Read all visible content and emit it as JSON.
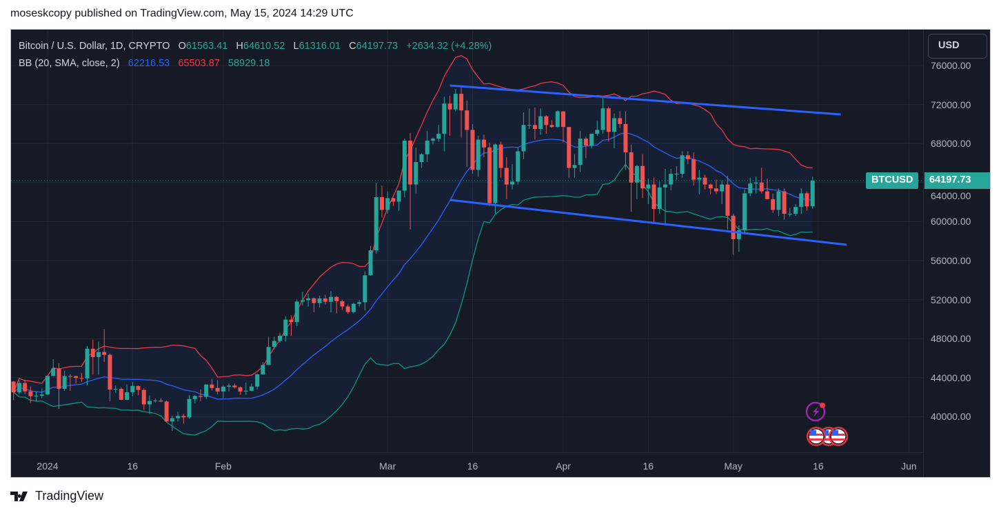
{
  "publisher_line": "moseskcopy published on TradingView.com, May 15, 2024 14:29 UTC",
  "footer": {
    "logo_text": "TradingView"
  },
  "legend": {
    "symbol": "Bitcoin / U.S. Dollar, 1D, CRYPTO",
    "o_label": "O",
    "o": "61563.41",
    "h_label": "H",
    "h": "64610.52",
    "l_label": "L",
    "l": "61316.01",
    "c_label": "C",
    "c": "64197.73",
    "change": "+2634.32 (+4.28%)",
    "bb_label": "BB (20, SMA, close, 2)",
    "bb_basis": "62216.53",
    "bb_upper": "65503.87",
    "bb_lower": "58929.18"
  },
  "currency_button": "USD",
  "symbol_tag": "BTCUSD",
  "last_price": "64197.73",
  "colors": {
    "up": "#26a69a",
    "down": "#ef5350",
    "bb_basis": "#2962ff",
    "bb_upper": "#f23645",
    "bb_lower": "#089981",
    "trendline": "#2962ff",
    "background": "#161a25"
  },
  "event_icons": [
    "lightning-event-icon",
    "us-flag-event-icon",
    "us-flag-event-icon"
  ],
  "chart_data": {
    "type": "candlestick",
    "interval": "1D",
    "ylim": [
      37000,
      79000
    ],
    "grid": true,
    "y_ticks": [
      "76000.00",
      "72000.00",
      "68000.00",
      "64000.00",
      "60000.00",
      "56000.00",
      "52000.00",
      "48000.00",
      "44000.00",
      "40000.00"
    ],
    "x_ticks": [
      {
        "date": "2024-01-01",
        "label": "2024"
      },
      {
        "date": "2024-01-16",
        "label": "16"
      },
      {
        "date": "2024-02-01",
        "label": "Feb"
      },
      {
        "date": "2024-03-01",
        "label": "Mar"
      },
      {
        "date": "2024-03-16",
        "label": "16"
      },
      {
        "date": "2024-04-01",
        "label": "Apr"
      },
      {
        "date": "2024-04-16",
        "label": "16"
      },
      {
        "date": "2024-05-01",
        "label": "May"
      },
      {
        "date": "2024-05-16",
        "label": "16"
      },
      {
        "date": "2024-06-01",
        "label": "Jun"
      }
    ],
    "indicator": {
      "name": "BB",
      "length": 20,
      "ma": "SMA",
      "source": "close",
      "mult": 2
    },
    "trendlines": [
      {
        "from": {
          "date": "2024-03-12",
          "price": 73950
        },
        "to": {
          "date": "2024-05-20",
          "price": 70980
        }
      },
      {
        "from": {
          "date": "2024-03-12",
          "price": 62220
        },
        "to": {
          "date": "2024-05-21",
          "price": 57625
        }
      }
    ],
    "candles_columns": [
      "date",
      "open",
      "high",
      "low",
      "close"
    ],
    "candles": [
      [
        "2023-12-26",
        43600,
        43650,
        41700,
        42500
      ],
      [
        "2023-12-27",
        42500,
        43700,
        42300,
        43450
      ],
      [
        "2023-12-28",
        43450,
        43800,
        42300,
        42600
      ],
      [
        "2023-12-29",
        42600,
        43100,
        41400,
        42100
      ],
      [
        "2023-12-30",
        42100,
        42600,
        41600,
        42150
      ],
      [
        "2023-12-31",
        42150,
        42900,
        41900,
        42280
      ],
      [
        "2024-01-01",
        42280,
        44200,
        42200,
        44180
      ],
      [
        "2024-01-02",
        44180,
        45900,
        44150,
        44950
      ],
      [
        "2024-01-03",
        44950,
        45500,
        40800,
        42850
      ],
      [
        "2024-01-04",
        42850,
        44700,
        42650,
        44170
      ],
      [
        "2024-01-05",
        44170,
        44350,
        42650,
        44150
      ],
      [
        "2024-01-06",
        44150,
        44200,
        43400,
        43970
      ],
      [
        "2024-01-07",
        43970,
        44500,
        43600,
        43930
      ],
      [
        "2024-01-08",
        43930,
        47250,
        43200,
        46970
      ],
      [
        "2024-01-09",
        46970,
        47900,
        44300,
        46110
      ],
      [
        "2024-01-10",
        46110,
        47700,
        44300,
        46630
      ],
      [
        "2024-01-11",
        46630,
        48970,
        45600,
        46340
      ],
      [
        "2024-01-12",
        46340,
        46500,
        41600,
        42780
      ],
      [
        "2024-01-13",
        42780,
        43200,
        42450,
        42850
      ],
      [
        "2024-01-14",
        42850,
        43000,
        41700,
        41730
      ],
      [
        "2024-01-15",
        41730,
        43300,
        41700,
        42510
      ],
      [
        "2024-01-16",
        42510,
        43550,
        42100,
        43150
      ],
      [
        "2024-01-17",
        43150,
        43200,
        42200,
        42740
      ],
      [
        "2024-01-18",
        42740,
        42900,
        40700,
        41260
      ],
      [
        "2024-01-19",
        41260,
        42180,
        40280,
        41620
      ],
      [
        "2024-01-20",
        41620,
        41860,
        41450,
        41660
      ],
      [
        "2024-01-21",
        41660,
        41890,
        41500,
        41560
      ],
      [
        "2024-01-22",
        41560,
        41650,
        39450,
        39510
      ],
      [
        "2024-01-23",
        39510,
        40120,
        38550,
        39850
      ],
      [
        "2024-01-24",
        39850,
        40500,
        39500,
        40080
      ],
      [
        "2024-01-25",
        40080,
        40300,
        39300,
        39930
      ],
      [
        "2024-01-26",
        39930,
        42200,
        39800,
        41810
      ],
      [
        "2024-01-27",
        41810,
        42200,
        41400,
        42120
      ],
      [
        "2024-01-28",
        42120,
        42800,
        41600,
        42030
      ],
      [
        "2024-01-29",
        42030,
        43300,
        41800,
        43300
      ],
      [
        "2024-01-30",
        43300,
        43880,
        42700,
        42940
      ],
      [
        "2024-01-31",
        42940,
        43750,
        42300,
        42580
      ],
      [
        "2024-02-01",
        42580,
        43250,
        41900,
        43080
      ],
      [
        "2024-02-02",
        43080,
        43400,
        42600,
        43190
      ],
      [
        "2024-02-03",
        43190,
        43400,
        42900,
        43010
      ],
      [
        "2024-02-04",
        43010,
        43100,
        42250,
        42580
      ],
      [
        "2024-02-05",
        42580,
        43500,
        42250,
        42660
      ],
      [
        "2024-02-06",
        42660,
        43400,
        42600,
        43090
      ],
      [
        "2024-02-07",
        43090,
        44400,
        42800,
        44340
      ],
      [
        "2024-02-08",
        44340,
        45600,
        44340,
        45300
      ],
      [
        "2024-02-09",
        45300,
        48200,
        45300,
        47150
      ],
      [
        "2024-02-10",
        47150,
        48200,
        46900,
        47770
      ],
      [
        "2024-02-11",
        47770,
        48600,
        47600,
        48300
      ],
      [
        "2024-02-12",
        48300,
        50300,
        47700,
        49950
      ],
      [
        "2024-02-13",
        49950,
        50400,
        48300,
        49700
      ],
      [
        "2024-02-14",
        49700,
        52000,
        49300,
        51800
      ],
      [
        "2024-02-15",
        51800,
        52800,
        51400,
        51940
      ],
      [
        "2024-02-16",
        51940,
        52600,
        51300,
        52130
      ],
      [
        "2024-02-17",
        52130,
        52200,
        50700,
        51650
      ],
      [
        "2024-02-18",
        51650,
        52400,
        51200,
        52120
      ],
      [
        "2024-02-19",
        52120,
        52500,
        51500,
        51780
      ],
      [
        "2024-02-20",
        51780,
        52900,
        50700,
        52280
      ],
      [
        "2024-02-21",
        52280,
        52370,
        50600,
        51840
      ],
      [
        "2024-02-22",
        51840,
        52000,
        50950,
        51300
      ],
      [
        "2024-02-23",
        51300,
        51500,
        50550,
        50730
      ],
      [
        "2024-02-24",
        50730,
        51700,
        50600,
        51570
      ],
      [
        "2024-02-25",
        51570,
        51950,
        51300,
        51730
      ],
      [
        "2024-02-26",
        51730,
        54900,
        50900,
        54490
      ],
      [
        "2024-02-27",
        54490,
        57500,
        54450,
        57050
      ],
      [
        "2024-02-28",
        57050,
        64000,
        56700,
        62500
      ],
      [
        "2024-02-29",
        62500,
        63700,
        60400,
        61200
      ],
      [
        "2024-03-01",
        61200,
        63100,
        60800,
        62400
      ],
      [
        "2024-03-02",
        62400,
        62450,
        61600,
        62050
      ],
      [
        "2024-03-03",
        62050,
        63200,
        61100,
        63170
      ],
      [
        "2024-03-04",
        63170,
        68500,
        62500,
        68300
      ],
      [
        "2024-03-05",
        68300,
        69100,
        59200,
        63800
      ],
      [
        "2024-03-06",
        63800,
        67600,
        62900,
        66100
      ],
      [
        "2024-03-07",
        66100,
        67000,
        65500,
        66900
      ],
      [
        "2024-03-08",
        66900,
        69300,
        66100,
        68300
      ],
      [
        "2024-03-09",
        68300,
        68600,
        67900,
        68500
      ],
      [
        "2024-03-10",
        68500,
        69900,
        68200,
        69000
      ],
      [
        "2024-03-11",
        69000,
        72800,
        67200,
        72100
      ],
      [
        "2024-03-12",
        72100,
        72900,
        68800,
        71500
      ],
      [
        "2024-03-13",
        71500,
        73600,
        71300,
        73100
      ],
      [
        "2024-03-14",
        73100,
        73700,
        68600,
        71400
      ],
      [
        "2024-03-15",
        71400,
        72400,
        65600,
        69400
      ],
      [
        "2024-03-16",
        69400,
        70000,
        64900,
        65300
      ],
      [
        "2024-03-17",
        65300,
        68800,
        64600,
        68400
      ],
      [
        "2024-03-18",
        68400,
        68900,
        66600,
        67600
      ],
      [
        "2024-03-19",
        67600,
        68100,
        61600,
        61900
      ],
      [
        "2024-03-20",
        61900,
        68000,
        60800,
        67900
      ],
      [
        "2024-03-21",
        67900,
        68200,
        64500,
        65500
      ],
      [
        "2024-03-22",
        65500,
        66600,
        62300,
        63800
      ],
      [
        "2024-03-23",
        63800,
        65900,
        63300,
        64100
      ],
      [
        "2024-03-24",
        64100,
        67600,
        63800,
        67200
      ],
      [
        "2024-03-25",
        67200,
        71200,
        66400,
        69900
      ],
      [
        "2024-03-26",
        69900,
        71600,
        69500,
        69900
      ],
      [
        "2024-03-27",
        69900,
        71700,
        68400,
        69500
      ],
      [
        "2024-03-28",
        69500,
        71600,
        68900,
        70800
      ],
      [
        "2024-03-29",
        70800,
        70900,
        69000,
        69900
      ],
      [
        "2024-03-30",
        69900,
        70400,
        69600,
        69700
      ],
      [
        "2024-03-31",
        69700,
        71400,
        69600,
        71300
      ],
      [
        "2024-04-01",
        71300,
        71300,
        68100,
        69700
      ],
      [
        "2024-04-02",
        69700,
        69700,
        64500,
        65500
      ],
      [
        "2024-04-03",
        65500,
        66900,
        64500,
        65800
      ],
      [
        "2024-04-04",
        65800,
        69300,
        65100,
        68500
      ],
      [
        "2024-04-05",
        68500,
        68700,
        66500,
        67800
      ],
      [
        "2024-04-06",
        67800,
        69000,
        67500,
        69000
      ],
      [
        "2024-04-07",
        69000,
        70300,
        68800,
        69400
      ],
      [
        "2024-04-08",
        69400,
        72800,
        69000,
        71600
      ],
      [
        "2024-04-09",
        71600,
        71800,
        68200,
        69200
      ],
      [
        "2024-04-10",
        69200,
        71100,
        67500,
        70600
      ],
      [
        "2024-04-11",
        70600,
        71300,
        69600,
        70000
      ],
      [
        "2024-04-12",
        70000,
        71300,
        65300,
        67100
      ],
      [
        "2024-04-13",
        67100,
        67900,
        61000,
        64000
      ],
      [
        "2024-04-14",
        64000,
        65800,
        62300,
        65700
      ],
      [
        "2024-04-15",
        65700,
        66900,
        62400,
        63400
      ],
      [
        "2024-04-16",
        63400,
        64400,
        61800,
        63800
      ],
      [
        "2024-04-17",
        63800,
        64500,
        59800,
        61300
      ],
      [
        "2024-04-18",
        61300,
        64100,
        60800,
        63500
      ],
      [
        "2024-04-19",
        63500,
        65400,
        59600,
        63800
      ],
      [
        "2024-04-20",
        63800,
        65400,
        63200,
        64900
      ],
      [
        "2024-04-21",
        64900,
        65700,
        64300,
        64900
      ],
      [
        "2024-04-22",
        64900,
        67200,
        64500,
        66800
      ],
      [
        "2024-04-23",
        66800,
        67200,
        65900,
        66400
      ],
      [
        "2024-04-24",
        66400,
        67100,
        63700,
        64300
      ],
      [
        "2024-04-25",
        64300,
        65300,
        62800,
        64500
      ],
      [
        "2024-04-26",
        64500,
        64800,
        63300,
        63800
      ],
      [
        "2024-04-27",
        63800,
        63900,
        62800,
        63400
      ],
      [
        "2024-04-28",
        63400,
        64300,
        62800,
        63100
      ],
      [
        "2024-04-29",
        63100,
        64200,
        61800,
        63800
      ],
      [
        "2024-04-30",
        63800,
        64700,
        59200,
        60600
      ],
      [
        "2024-05-01",
        60600,
        60800,
        56600,
        58200
      ],
      [
        "2024-05-02",
        58200,
        59600,
        56900,
        59100
      ],
      [
        "2024-05-03",
        59100,
        63300,
        58800,
        62900
      ],
      [
        "2024-05-04",
        62900,
        64500,
        62600,
        63900
      ],
      [
        "2024-05-05",
        63900,
        64600,
        62900,
        64000
      ],
      [
        "2024-05-06",
        64000,
        65500,
        62900,
        63100
      ],
      [
        "2024-05-07",
        63100,
        64400,
        62300,
        62300
      ],
      [
        "2024-05-08",
        62300,
        62900,
        60900,
        61200
      ],
      [
        "2024-05-09",
        61200,
        63400,
        60600,
        63100
      ],
      [
        "2024-05-10",
        63100,
        63400,
        60200,
        60800
      ],
      [
        "2024-05-11",
        60800,
        61400,
        60500,
        60800
      ],
      [
        "2024-05-12",
        60800,
        61800,
        60600,
        61500
      ],
      [
        "2024-05-13",
        61500,
        63400,
        60800,
        62900
      ],
      [
        "2024-05-14",
        62900,
        63100,
        61100,
        61563.41
      ],
      [
        "2024-05-15",
        61563.41,
        64610.52,
        61316.01,
        64197.73
      ]
    ]
  }
}
